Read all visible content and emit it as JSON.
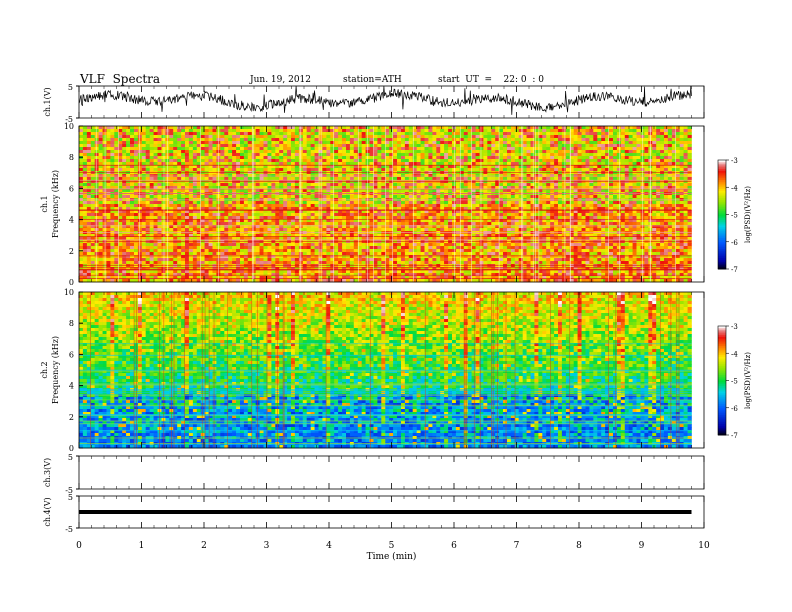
{
  "header": {
    "title": "VLF  Spectra",
    "date": "Jun. 19, 2012",
    "station": "station=ATH",
    "start": "start  UT  =    22: 0  : 0"
  },
  "chart_data": [
    {
      "type": "line",
      "ylabel": "ch.1(V)",
      "ylim": [
        -5,
        5
      ],
      "yticks": [
        "5",
        "-5"
      ],
      "xlim": [
        0,
        10
      ],
      "x_extent_min": 9.8,
      "trace_center_v": 0.5,
      "trace_amplitude_v": 3
    },
    {
      "type": "heatmap",
      "ylabel_top": "ch.1",
      "ylabel": "Frequency  (kHz)",
      "ylim": [
        0,
        10
      ],
      "yticks": [
        "0",
        "2",
        "4",
        "6",
        "8",
        "10"
      ],
      "xlim": [
        0,
        10
      ],
      "colorbar": {
        "label": "log(PSD)(V²/Hz)",
        "ticks": [
          "-3",
          "-4",
          "-5",
          "-6",
          "-7"
        ],
        "range": [
          -7,
          -3
        ]
      },
      "dominant_log_psd": -3.6
    },
    {
      "type": "heatmap",
      "ylabel_top": "ch.2",
      "ylabel": "Frequency  (kHz)",
      "ylim": [
        0,
        10
      ],
      "yticks": [
        "0",
        "2",
        "4",
        "6",
        "8",
        "10"
      ],
      "xlim": [
        0,
        10
      ],
      "colorbar": {
        "label": "log(PSD)(V²/Hz)",
        "ticks": [
          "-3",
          "-4",
          "-5",
          "-6",
          "-7"
        ],
        "range": [
          -7,
          -3
        ]
      },
      "dominant_log_psd": -5.3
    },
    {
      "type": "line",
      "ylabel": "ch.3(V)",
      "ylim": [
        -5,
        5
      ],
      "yticks": [
        "5",
        "-5"
      ],
      "xlim": [
        0,
        10
      ],
      "note_flat": true
    },
    {
      "type": "line",
      "ylabel": "ch.4(V)",
      "ylim": [
        -5,
        5
      ],
      "yticks": [
        "5",
        "-5"
      ],
      "xlim": [
        0,
        10
      ],
      "x_extent_min": 9.8,
      "trace_center_v": 0,
      "xlabel": "Time  (min)",
      "xticks": [
        "0",
        "1",
        "2",
        "3",
        "4",
        "5",
        "6",
        "7",
        "8",
        "9",
        "10"
      ]
    }
  ]
}
